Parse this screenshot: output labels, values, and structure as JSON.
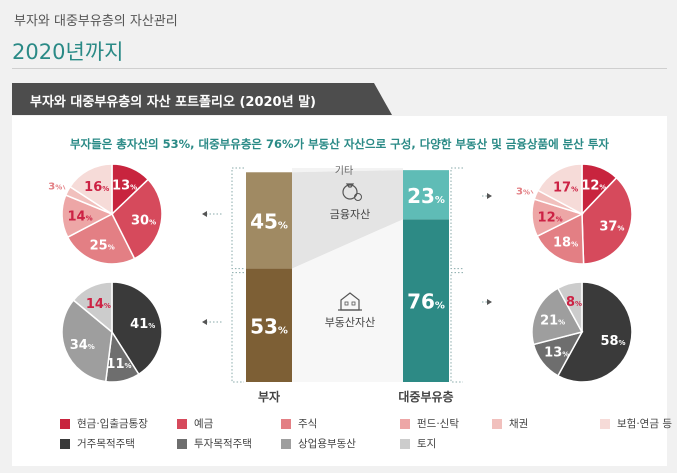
{
  "header": {
    "subtitle": "부자와 대중부유층의 자산관리",
    "title": "2020년까지"
  },
  "banner": {
    "label": "부자와 대중부유층의 자산 포트폴리오 (2020년 말)"
  },
  "headline": "부자들은 총자산의 53%, 대중부유층은 76%가 부동산 자산으로 구성, 다양한 부동산 및 금융상품에 분산 투자",
  "center": {
    "etc_label": "기타",
    "financial_label": "금융자산",
    "realestate_label": "부동산자산",
    "rich_label": "부자",
    "affluent_label": "대중부유층"
  },
  "colors": {
    "accent": "#2a8a86",
    "rich_top": "#a08a63",
    "rich_bottom": "#7d5f35",
    "affluent_top": "#5fbcb6",
    "affluent_bottom": "#2d8a85",
    "etc_band": "#e4e4e4",
    "banner": "#4d4d4d"
  },
  "legend": [
    {
      "label": "현금·입출금통장",
      "color": "#c8243e"
    },
    {
      "label": "예금",
      "color": "#d64a5c"
    },
    {
      "label": "주식",
      "color": "#e37f84"
    },
    {
      "label": "펀드·신탁",
      "color": "#eda6a6"
    },
    {
      "label": "채권",
      "color": "#f1c0bd"
    },
    {
      "label": "보험·연금 등",
      "color": "#f6dbd8"
    },
    {
      "label": "거주목적주택",
      "color": "#3a3a3a"
    },
    {
      "label": "투자목적주택",
      "color": "#6e6e6e"
    },
    {
      "label": "상업용부동산",
      "color": "#9e9e9e"
    },
    {
      "label": "토지",
      "color": "#cccccc"
    }
  ],
  "chart_data": [
    {
      "type": "bar",
      "categories": [
        "부자",
        "대중부유층"
      ],
      "series": [
        {
          "name": "부동산자산",
          "values": [
            53,
            76
          ]
        },
        {
          "name": "금융자산",
          "values": [
            45,
            23
          ]
        }
      ],
      "labels": [
        "53%",
        "45%",
        "76%",
        "23%"
      ]
    },
    {
      "type": "pie",
      "group": "부자",
      "labels": [
        "현금·입출금통장",
        "예금",
        "주식",
        "펀드·신탁",
        "채권",
        "보험·연금 등"
      ],
      "values": [
        13,
        30,
        25,
        14,
        3,
        16
      ],
      "texts": [
        "13%",
        "30%",
        "25%",
        "14%",
        "3%",
        "16%"
      ]
    },
    {
      "type": "pie",
      "group": "부자",
      "labels": [
        "거주목적주택",
        "투자목적주택",
        "상업용부동산",
        "토지"
      ],
      "values": [
        41,
        11,
        34,
        14
      ],
      "texts": [
        "41%",
        "11%",
        "34%",
        "14%"
      ]
    },
    {
      "type": "pie",
      "group": "대중부유층",
      "labels": [
        "현금·입출금통장",
        "예금",
        "주식",
        "펀드·신탁",
        "채권",
        "보험·연금 등"
      ],
      "values": [
        12,
        37,
        18,
        12,
        3,
        17
      ],
      "texts": [
        "12%",
        "37%",
        "18%",
        "12%",
        "3%",
        "17%"
      ]
    },
    {
      "type": "pie",
      "group": "대중부유층",
      "labels": [
        "거주목적주택",
        "투자목적주택",
        "상업용부동산",
        "토지"
      ],
      "values": [
        58,
        13,
        21,
        8
      ],
      "texts": [
        "58%",
        "13%",
        "21%",
        "8%"
      ]
    }
  ]
}
